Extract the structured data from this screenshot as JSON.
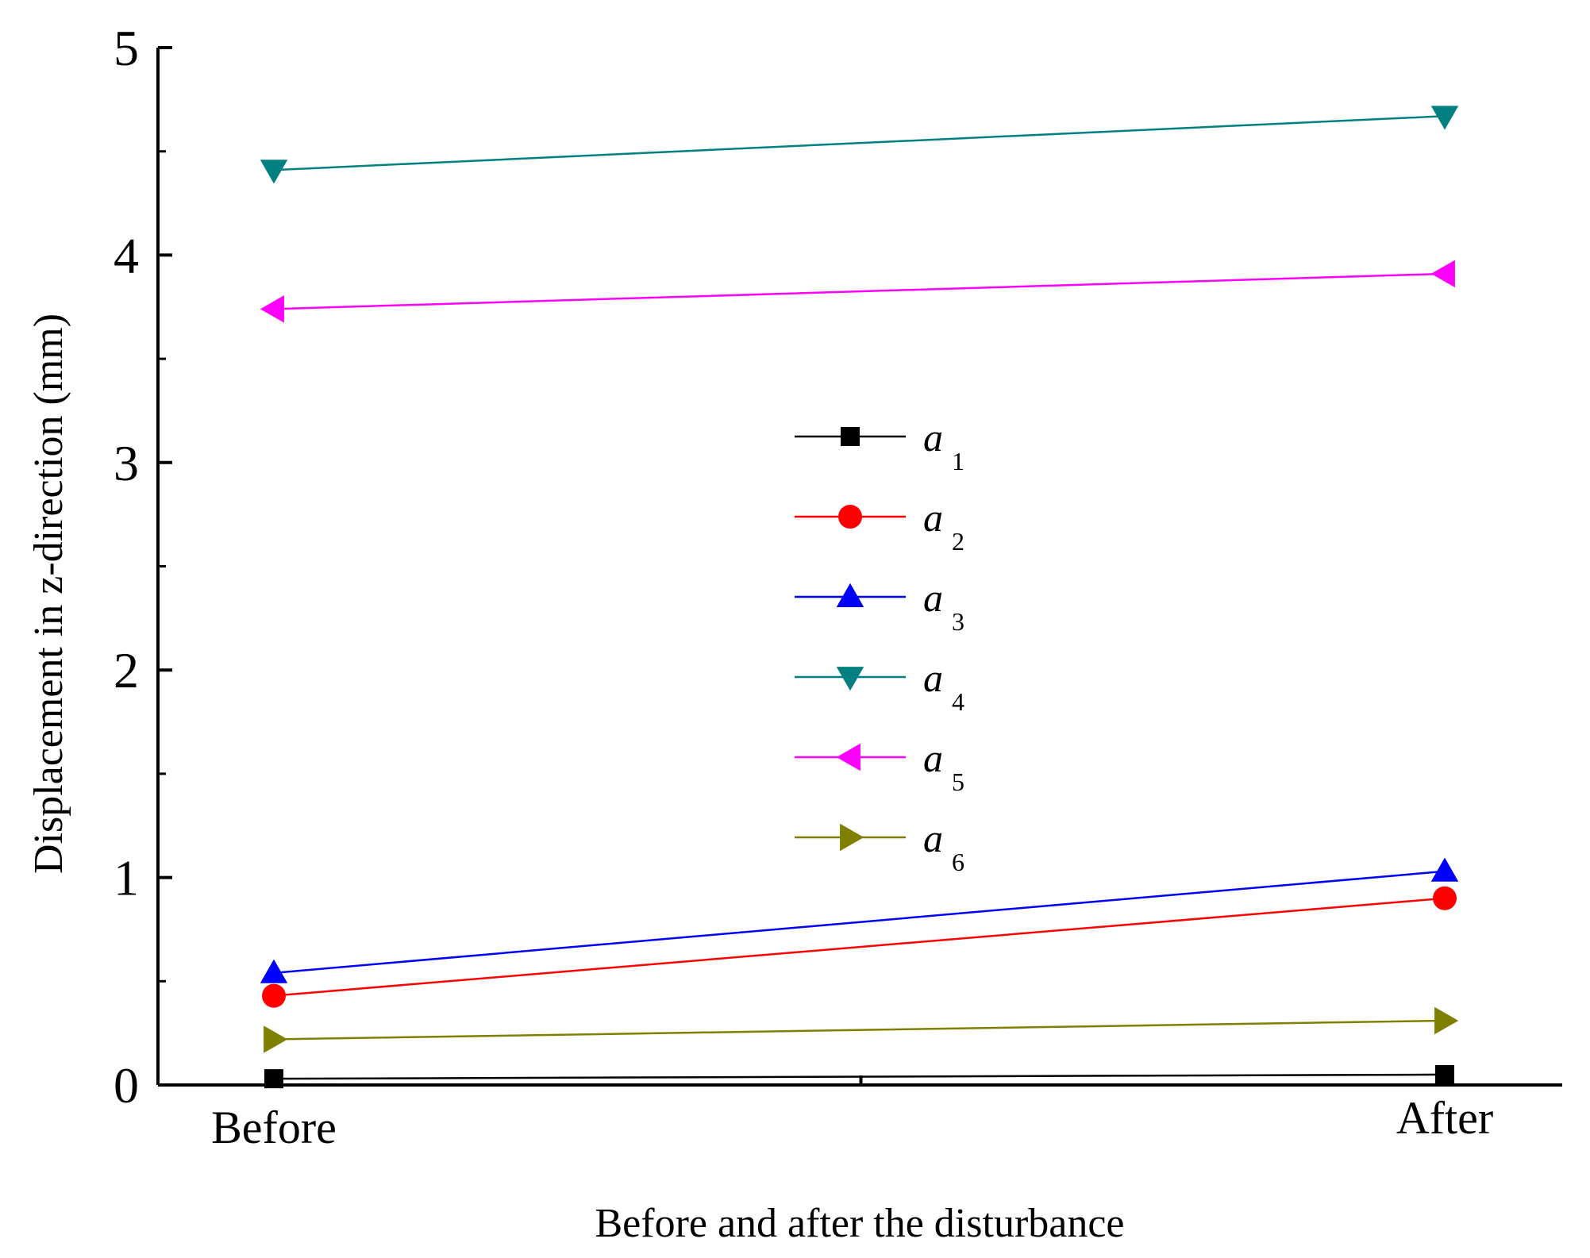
{
  "chart_data": {
    "type": "line",
    "title": "",
    "xlabel": "Before and after the disturbance",
    "ylabel": "Displacement in z-direction (mm)",
    "categories": [
      "Before",
      "After"
    ],
    "ylim": [
      0,
      5
    ],
    "yticks": [
      "0",
      "1",
      "2",
      "3",
      "4",
      "5"
    ],
    "grid": false,
    "legend_position": "center",
    "series": [
      {
        "name": "a",
        "sub": "1",
        "values": [
          0.03,
          0.05
        ],
        "color": "#000000",
        "marker": "square"
      },
      {
        "name": "a",
        "sub": "2",
        "values": [
          0.43,
          0.9
        ],
        "color": "#ff0000",
        "marker": "circle"
      },
      {
        "name": "a",
        "sub": "3",
        "values": [
          0.54,
          1.03
        ],
        "color": "#0000ff",
        "marker": "triangle-up"
      },
      {
        "name": "a",
        "sub": "4",
        "values": [
          4.41,
          4.67
        ],
        "color": "#008080",
        "marker": "triangle-down"
      },
      {
        "name": "a",
        "sub": "5",
        "values": [
          3.74,
          3.91
        ],
        "color": "#ff00ff",
        "marker": "triangle-left"
      },
      {
        "name": "a",
        "sub": "6",
        "values": [
          0.22,
          0.31
        ],
        "color": "#808000",
        "marker": "triangle-right"
      }
    ]
  }
}
